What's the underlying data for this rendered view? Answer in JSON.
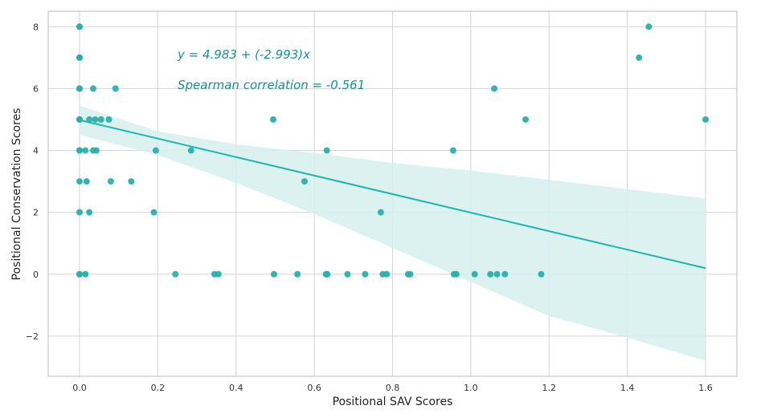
{
  "chart_data": {
    "type": "scatter",
    "xlabel": "Positional SAV Scores",
    "ylabel": "Positional Conservation Scores",
    "xlim": [
      -0.08,
      1.68
    ],
    "ylim": [
      -3.3,
      8.5
    ],
    "x_ticks": [
      0.0,
      0.2,
      0.4,
      0.6,
      0.8,
      1.0,
      1.2,
      1.4,
      1.6
    ],
    "x_tick_labels": [
      "0.0",
      "0.2",
      "0.4",
      "0.6",
      "0.8",
      "1.0",
      "1.2",
      "1.4",
      "1.6"
    ],
    "y_ticks": [
      -2,
      0,
      2,
      4,
      6,
      8
    ],
    "y_tick_labels": [
      "−2",
      "0",
      "2",
      "4",
      "6",
      "8"
    ],
    "grid": true,
    "annotations": [
      {
        "text": "y = 4.983 + (-2.993)x",
        "color": "#1a8f8f"
      },
      {
        "text": "Spearman correlation = -0.561",
        "color": "#1a8f8f"
      }
    ],
    "regression": {
      "intercept": 4.983,
      "slope": -2.993,
      "x_range": [
        0.0,
        1.6
      ]
    },
    "confidence_band": [
      {
        "x": 0.0,
        "lower": 4.5,
        "upper": 5.45
      },
      {
        "x": 0.2,
        "lower": 3.85,
        "upper": 4.62
      },
      {
        "x": 0.4,
        "lower": 2.95,
        "upper": 4.2
      },
      {
        "x": 0.6,
        "lower": 1.95,
        "upper": 3.92
      },
      {
        "x": 0.8,
        "lower": 0.85,
        "upper": 3.6
      },
      {
        "x": 1.0,
        "lower": -0.25,
        "upper": 3.35
      },
      {
        "x": 1.2,
        "lower": -1.35,
        "upper": 3.05
      },
      {
        "x": 1.4,
        "lower": -2.05,
        "upper": 2.75
      },
      {
        "x": 1.6,
        "lower": -2.8,
        "upper": 2.45
      }
    ],
    "colors": {
      "points": "#2ab0aa",
      "line": "#1fb5ad",
      "band": "#d5f0ee",
      "grid": "#d4d4d4",
      "frame": "#bbbbbb"
    },
    "points": [
      [
        0.0,
        8
      ],
      [
        0.0,
        8
      ],
      [
        0.0,
        7
      ],
      [
        0.0,
        7
      ],
      [
        0.0,
        6
      ],
      [
        0.0,
        6
      ],
      [
        0.0,
        5
      ],
      [
        0.0,
        5
      ],
      [
        0.0,
        4
      ],
      [
        0.0,
        4
      ],
      [
        0.0,
        3
      ],
      [
        0.0,
        2
      ],
      [
        0.0,
        0
      ],
      [
        0.0,
        0
      ],
      [
        0.015,
        4
      ],
      [
        0.018,
        3
      ],
      [
        0.015,
        0
      ],
      [
        0.025,
        5
      ],
      [
        0.025,
        2
      ],
      [
        0.035,
        6
      ],
      [
        0.035,
        4
      ],
      [
        0.04,
        5
      ],
      [
        0.043,
        4
      ],
      [
        0.055,
        5
      ],
      [
        0.075,
        5
      ],
      [
        0.08,
        3
      ],
      [
        0.092,
        6
      ],
      [
        0.132,
        3
      ],
      [
        0.19,
        2
      ],
      [
        0.195,
        4
      ],
      [
        0.245,
        0
      ],
      [
        0.285,
        4
      ],
      [
        0.345,
        0
      ],
      [
        0.355,
        0
      ],
      [
        0.495,
        5
      ],
      [
        0.497,
        0
      ],
      [
        0.557,
        0
      ],
      [
        0.575,
        3
      ],
      [
        0.63,
        0
      ],
      [
        0.633,
        0
      ],
      [
        0.632,
        4
      ],
      [
        0.685,
        0
      ],
      [
        0.73,
        0
      ],
      [
        0.77,
        2
      ],
      [
        0.775,
        0
      ],
      [
        0.785,
        0
      ],
      [
        0.84,
        0
      ],
      [
        0.845,
        0
      ],
      [
        0.955,
        4
      ],
      [
        0.957,
        0
      ],
      [
        0.963,
        0
      ],
      [
        1.01,
        0
      ],
      [
        1.05,
        0
      ],
      [
        1.06,
        6
      ],
      [
        1.067,
        0
      ],
      [
        1.087,
        0
      ],
      [
        1.14,
        5
      ],
      [
        1.18,
        0
      ],
      [
        1.43,
        7
      ],
      [
        1.455,
        8
      ],
      [
        1.6,
        5
      ]
    ]
  }
}
